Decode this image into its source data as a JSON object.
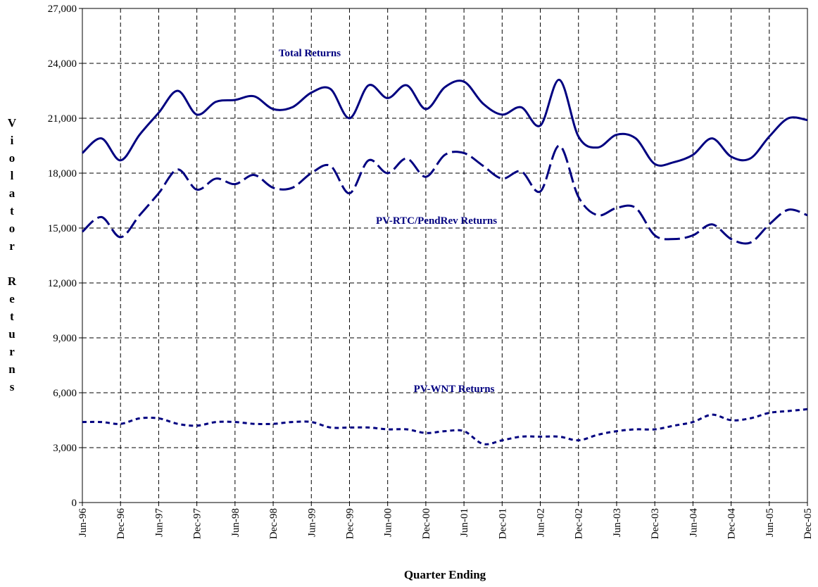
{
  "chart_data": {
    "type": "line",
    "x_label": "Quarter Ending",
    "y_label": "Violator Returns",
    "annotations": [
      "Total Returns",
      "PV-RTC/PendRev Returns",
      "PV-WNT Returns"
    ],
    "categories": [
      "Jun-96",
      null,
      "Dec-96",
      null,
      "Jun-97",
      null,
      "Dec-97",
      null,
      "Jun-98",
      null,
      "Dec-98",
      null,
      "Jun-99",
      null,
      "Dec-99",
      null,
      "Jun-00",
      null,
      "Dec-00",
      null,
      "Jun-01",
      null,
      "Dec-01",
      null,
      "Jun-02",
      null,
      "Dec-02",
      null,
      "Jun-03",
      null,
      "Dec-03",
      null,
      "Jun-04",
      null,
      "Dec-04",
      null,
      "Jun-05",
      null,
      "Dec-05"
    ],
    "series": [
      {
        "name": "Total Returns",
        "color": "#000080",
        "style": "solid",
        "values": [
          19100,
          19900,
          18700,
          20100,
          21300,
          22500,
          21200,
          21900,
          22000,
          22200,
          21500,
          21600,
          22400,
          22600,
          21000,
          22800,
          22100,
          22800,
          21500,
          22700,
          23000,
          21800,
          21200,
          21600,
          20600,
          23100,
          20000,
          19400,
          20100,
          19900,
          18500,
          18600,
          19000,
          19900,
          18900,
          18800,
          20000,
          21000,
          20900
        ]
      },
      {
        "name": "PV-RTC/PendRev Returns",
        "color": "#000080",
        "style": "dashed",
        "values": [
          14800,
          15600,
          14500,
          15700,
          16900,
          18200,
          17100,
          17700,
          17400,
          17900,
          17200,
          17200,
          18000,
          18400,
          16900,
          18700,
          18000,
          18800,
          17800,
          19000,
          19100,
          18400,
          17700,
          18100,
          17000,
          19500,
          16700,
          15700,
          16100,
          16100,
          14600,
          14400,
          14600,
          15200,
          14400,
          14200,
          15200,
          16000,
          15700
        ]
      },
      {
        "name": "PV-WNT Returns",
        "color": "#000080",
        "style": "dotted",
        "values": [
          4400,
          4400,
          4300,
          4600,
          4600,
          4300,
          4200,
          4400,
          4400,
          4300,
          4300,
          4400,
          4400,
          4100,
          4100,
          4100,
          4000,
          4000,
          3800,
          3900,
          3900,
          3200,
          3400,
          3600,
          3600,
          3600,
          3400,
          3700,
          3900,
          4000,
          4000,
          4200,
          4400,
          4800,
          4500,
          4600,
          4900,
          5000,
          5100
        ]
      }
    ],
    "ylim": [
      0,
      27000
    ],
    "yticks": [
      0,
      {
        "value": 3000,
        "label": "3,000"
      },
      {
        "value": 6000,
        "label": "6,000"
      },
      {
        "value": 9000,
        "label": "9,000"
      },
      {
        "value": 12000,
        "label": "12,000"
      },
      {
        "value": 15000,
        "label": "15,000"
      },
      {
        "value": 18000,
        "label": "18,000"
      },
      {
        "value": 21000,
        "label": "21,000"
      },
      {
        "value": 24000,
        "label": "24,000"
      },
      {
        "value": 27000,
        "label": "27,000"
      }
    ],
    "grid": true
  }
}
